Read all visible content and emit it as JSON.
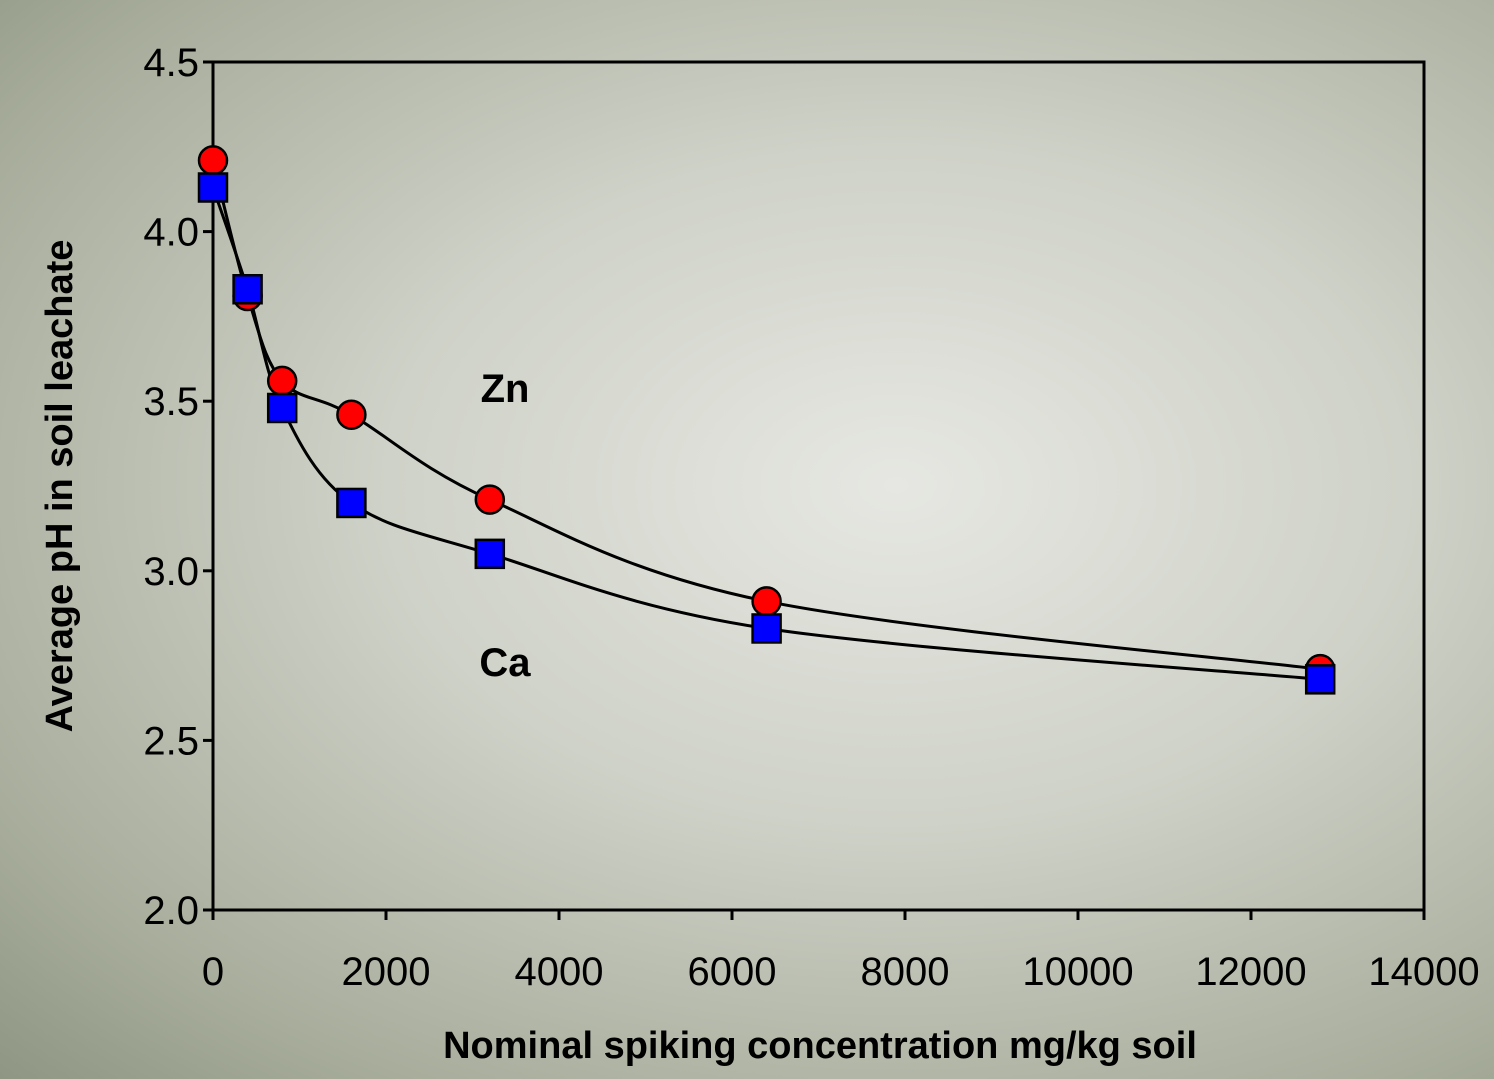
{
  "chart_data": {
    "type": "scatter",
    "x_label": "Nominal spiking concentration mg/kg soil",
    "y_label": "Average pH in soil leachate",
    "x": [
      0,
      400,
      800,
      1600,
      3200,
      6400,
      12800
    ],
    "series": [
      {
        "name": "Zn",
        "color": "#ff0000",
        "marker": "circle",
        "values": [
          4.21,
          3.81,
          3.56,
          3.46,
          3.21,
          2.91,
          2.71
        ]
      },
      {
        "name": "Ca",
        "color": "#0000ff",
        "marker": "square",
        "values": [
          4.13,
          3.83,
          3.48,
          3.2,
          3.05,
          2.83,
          2.68
        ]
      }
    ],
    "xlim": [
      0,
      14000
    ],
    "xticks": [
      0,
      2000,
      4000,
      6000,
      8000,
      10000,
      12000,
      14000
    ],
    "ylim": [
      2,
      4.5
    ],
    "yticks": [
      {
        "value": 2,
        "label": "2.0"
      },
      2.5,
      {
        "value": 3,
        "label": "3.0"
      },
      3.5,
      {
        "value": 4,
        "label": "4.0"
      },
      4.5
    ]
  }
}
